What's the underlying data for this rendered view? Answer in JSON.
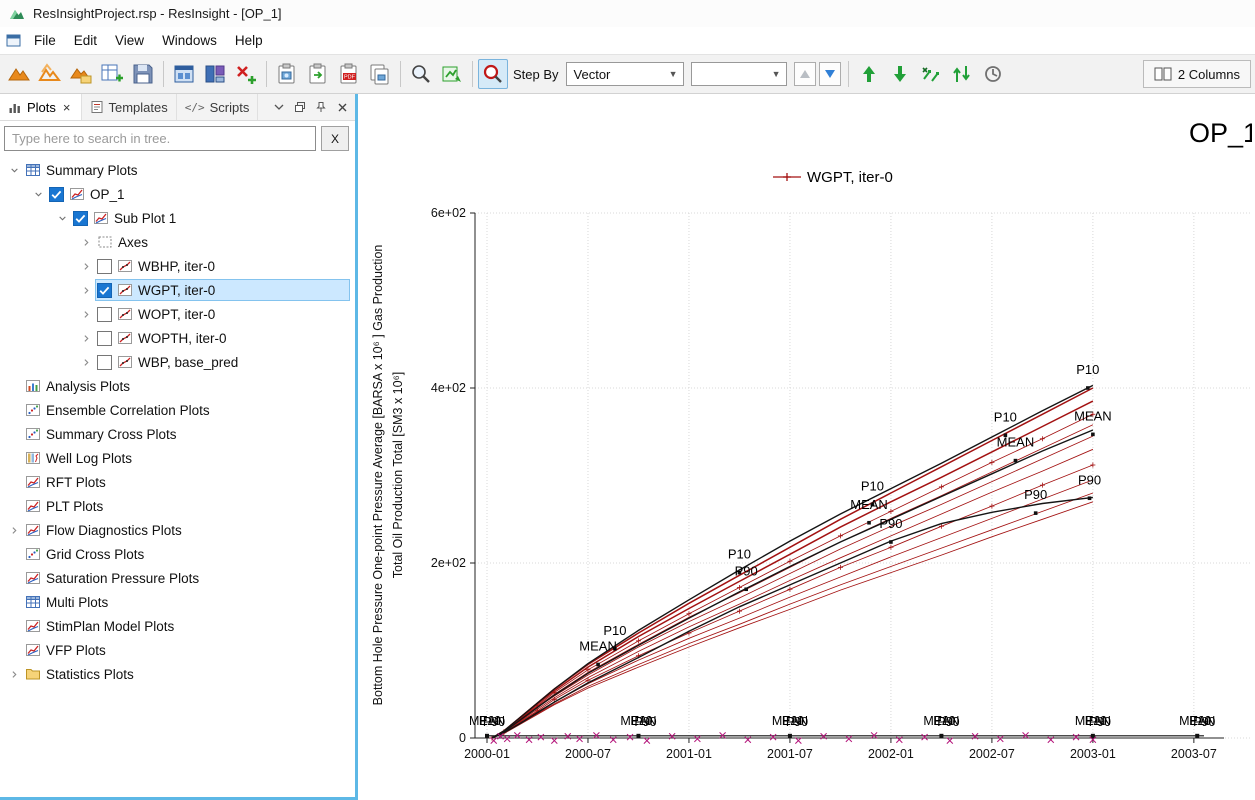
{
  "window": {
    "title": "ResInsightProject.rsp - ResInsight - [OP_1]"
  },
  "menu": {
    "items": [
      "File",
      "Edit",
      "View",
      "Windows",
      "Help"
    ]
  },
  "toolbar": {
    "step_by_label": "Step By",
    "vector_value": "Vector",
    "case_value": "",
    "columns_label": "2 Columns",
    "pdf_badge": "PDF"
  },
  "dock": {
    "tabs": [
      {
        "label": "Plots",
        "close_glyph": "×"
      },
      {
        "label": "Templates"
      },
      {
        "label": "Scripts",
        "icon_text": "</>"
      }
    ],
    "search": {
      "placeholder": "Type here to search in tree.",
      "clear_label": "X"
    },
    "tree": [
      {
        "label": "Summary Plots",
        "depth": 0,
        "expander": "open",
        "icon": "table"
      },
      {
        "label": "OP_1",
        "depth": 1,
        "expander": "open",
        "checkbox": "checked",
        "icon": "plot"
      },
      {
        "label": "Sub Plot 1",
        "depth": 2,
        "expander": "open",
        "checkbox": "checked",
        "icon": "plot"
      },
      {
        "label": "Axes",
        "depth": 3,
        "expander": "closed",
        "icon": "axes"
      },
      {
        "label": "WBHP, iter-0",
        "depth": 3,
        "expander": "closed",
        "checkbox": "unchecked",
        "icon": "curve"
      },
      {
        "label": "WGPT, iter-0",
        "depth": 3,
        "expander": "closed",
        "checkbox": "checked",
        "icon": "curve",
        "selected": true
      },
      {
        "label": "WOPT, iter-0",
        "depth": 3,
        "expander": "closed",
        "checkbox": "unchecked",
        "icon": "curve"
      },
      {
        "label": "WOPTH, iter-0",
        "depth": 3,
        "expander": "closed",
        "checkbox": "unchecked",
        "icon": "curve"
      },
      {
        "label": "WBP, base_pred",
        "depth": 3,
        "expander": "closed",
        "checkbox": "unchecked",
        "icon": "curve"
      },
      {
        "label": "Analysis Plots",
        "depth": 0,
        "icon": "bars"
      },
      {
        "label": "Ensemble Correlation Plots",
        "depth": 0,
        "icon": "scatter"
      },
      {
        "label": "Summary Cross Plots",
        "depth": 0,
        "icon": "scatter"
      },
      {
        "label": "Well Log Plots",
        "depth": 0,
        "icon": "log"
      },
      {
        "label": "RFT Plots",
        "depth": 0,
        "icon": "plot"
      },
      {
        "label": "PLT Plots",
        "depth": 0,
        "icon": "plot"
      },
      {
        "label": "Flow Diagnostics Plots",
        "depth": 0,
        "expander": "closed",
        "icon": "plot"
      },
      {
        "label": "Grid Cross Plots",
        "depth": 0,
        "icon": "scatter"
      },
      {
        "label": "Saturation Pressure Plots",
        "depth": 0,
        "icon": "plot"
      },
      {
        "label": "Multi Plots",
        "depth": 0,
        "icon": "table"
      },
      {
        "label": "StimPlan Model Plots",
        "depth": 0,
        "icon": "plot"
      },
      {
        "label": "VFP Plots",
        "depth": 0,
        "icon": "plot"
      },
      {
        "label": "Statistics Plots",
        "depth": 0,
        "expander": "closed",
        "icon": "folder"
      }
    ]
  },
  "chart_data": {
    "type": "line",
    "title": "OP_1",
    "legend": {
      "label": "WGPT, iter-0",
      "color": "#a31212",
      "marker": "+"
    },
    "x_axis": {
      "tick_labels": [
        "2000-01",
        "2000-07",
        "2001-01",
        "2001-07",
        "2002-01",
        "2002-07",
        "2003-01",
        "2003-07"
      ],
      "tick_months": [
        0,
        6,
        12,
        18,
        24,
        30,
        36,
        42
      ]
    },
    "y_axis": {
      "tick_labels": [
        "0",
        "2e+02",
        "4e+02",
        "6e+02"
      ],
      "tick_values": [
        0,
        200,
        400,
        600
      ],
      "label_line_1": "Bottom Hole Pressure One-point Pressure Average [BARSA x 10⁶ ] Gas Production",
      "label_line_2": "Total Oil Production Total [SM3 x 10⁶]"
    },
    "x_months": [
      0.3,
      1,
      2,
      3,
      4,
      6,
      9,
      12,
      15,
      18,
      21,
      24,
      27,
      30,
      33,
      36
    ],
    "realizations": [
      [
        0,
        8,
        24,
        40,
        56,
        84,
        120,
        154,
        186,
        218,
        250,
        280,
        310,
        340,
        370,
        400
      ],
      [
        0,
        8,
        23,
        39,
        54,
        81,
        116,
        148,
        179,
        210,
        241,
        270,
        298,
        327,
        356,
        385
      ],
      [
        0,
        7,
        22,
        37,
        52,
        78,
        111,
        142,
        172,
        202,
        231,
        259,
        287,
        315,
        342,
        370
      ],
      [
        0,
        7,
        21,
        36,
        50,
        75,
        107,
        138,
        166,
        195,
        224,
        251,
        277,
        304,
        331,
        358
      ],
      [
        0,
        7,
        21,
        35,
        48,
        72,
        104,
        133,
        160,
        188,
        216,
        242,
        267,
        293,
        319,
        345
      ],
      [
        0,
        7,
        20,
        33,
        46,
        69,
        99,
        127,
        153,
        180,
        206,
        231,
        256,
        281,
        305,
        330
      ],
      [
        0,
        6,
        19,
        31,
        44,
        66,
        94,
        120,
        145,
        170,
        195,
        218,
        242,
        265,
        289,
        312
      ],
      [
        0,
        6,
        18,
        30,
        41,
        62,
        89,
        114,
        137,
        161,
        184,
        207,
        229,
        251,
        273,
        295
      ],
      [
        0,
        6,
        17,
        28,
        39,
        59,
        84,
        108,
        130,
        153,
        175,
        196,
        217,
        238,
        259,
        280
      ],
      [
        0,
        5,
        16,
        27,
        38,
        57,
        81,
        104,
        126,
        147,
        169,
        189,
        209,
        230,
        250,
        270
      ]
    ],
    "statistics": [
      {
        "name": "P10",
        "values": [
          0,
          8,
          24,
          40,
          56,
          85,
          123,
          158,
          192,
          225,
          256,
          285,
          314,
          344,
          374,
          403
        ],
        "labels": [
          [
            7.6,
            118
          ],
          [
            15,
            205
          ],
          [
            22.9,
            283
          ],
          [
            30.8,
            362
          ],
          [
            35.7,
            416
          ]
        ]
      },
      {
        "name": "MEAN",
        "values": [
          0,
          7,
          21,
          35,
          49,
          74,
          106,
          137,
          167,
          196,
          224,
          250,
          276,
          302,
          328,
          352
        ],
        "labels": [
          [
            6.6,
            100
          ],
          [
            22.7,
            262
          ],
          [
            31.4,
            333
          ],
          [
            36,
            363
          ]
        ]
      },
      {
        "name": "P90",
        "values": [
          0,
          6,
          17,
          29,
          41,
          63,
          92,
          122,
          150,
          175,
          200,
          225,
          245,
          258,
          268,
          275
        ],
        "labels": [
          [
            15.4,
            186
          ],
          [
            24,
            240
          ],
          [
            32.6,
            273
          ],
          [
            35.8,
            290
          ]
        ]
      }
    ],
    "baseline": {
      "start_month": 0,
      "end_month": 42.6,
      "value": 2.5,
      "marker_months": [
        0,
        9,
        18,
        27,
        36,
        42.2
      ]
    },
    "bottom_label_months": [
      0,
      9,
      18,
      27,
      36,
      42.2
    ],
    "bottom_label_texts": [
      "MEAN",
      "P10",
      "P90"
    ],
    "scatter_low": {
      "color": "#b4157a",
      "points": [
        [
          0.4,
          -3
        ],
        [
          0.8,
          2
        ],
        [
          1.2,
          -1
        ],
        [
          1.8,
          3
        ],
        [
          2.5,
          -2
        ],
        [
          3.2,
          1
        ],
        [
          4,
          -3
        ],
        [
          4.8,
          2
        ],
        [
          5.5,
          -1
        ],
        [
          6.5,
          3
        ],
        [
          7.5,
          -2
        ],
        [
          8.5,
          1
        ],
        [
          9.5,
          -3
        ],
        [
          11,
          2
        ],
        [
          12.5,
          -1
        ],
        [
          14,
          3
        ],
        [
          15.5,
          -2
        ],
        [
          17,
          1
        ],
        [
          18.5,
          -3
        ],
        [
          20,
          2
        ],
        [
          21.5,
          -1
        ],
        [
          23,
          3
        ],
        [
          24.5,
          -2
        ],
        [
          26,
          1
        ],
        [
          27.5,
          -3
        ],
        [
          29,
          2
        ],
        [
          30.5,
          -1
        ],
        [
          32,
          3
        ],
        [
          33.5,
          -2
        ],
        [
          35,
          1
        ],
        [
          36,
          -2
        ]
      ]
    }
  }
}
